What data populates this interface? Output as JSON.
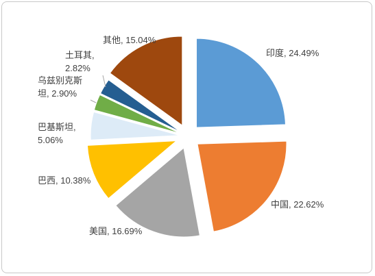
{
  "chart_data": {
    "type": "pie",
    "exploded": true,
    "legend": "none",
    "slices": [
      {
        "label": "印度, 24.49%",
        "value": 24.49,
        "color": "#5B9BD5"
      },
      {
        "label": "中国, 22.62%",
        "value": 22.62,
        "color": "#ED7D31"
      },
      {
        "label": "美国, 16.69%",
        "value": 16.69,
        "color": "#A5A5A5"
      },
      {
        "label": "巴西, 10.38%",
        "value": 10.38,
        "color": "#FFC000"
      },
      {
        "label": [
          "巴基斯坦,",
          "5.06%"
        ],
        "value": 5.06,
        "color": "#DDEBF7"
      },
      {
        "label": [
          "乌兹别克斯",
          "坦, 2.90%"
        ],
        "value": 2.9,
        "color": "#70AD47"
      },
      {
        "label": [
          "土耳其,",
          "2.82%"
        ],
        "value": 2.82,
        "color": "#255E91"
      },
      {
        "label": "其他, 15.04%",
        "value": 15.04,
        "color": "#9E480E"
      }
    ]
  }
}
